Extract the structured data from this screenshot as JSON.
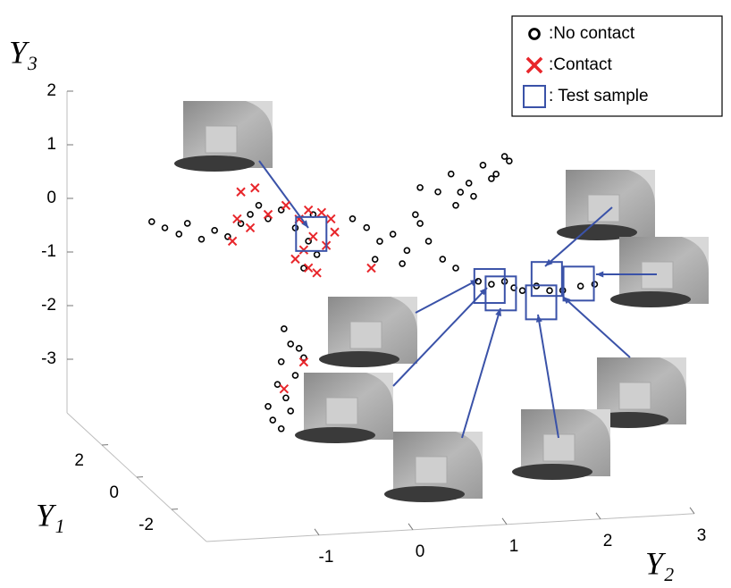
{
  "chart_data": {
    "type": "scatter3d",
    "x_label": "Y₂",
    "y_label": "Y₁",
    "z_label": "Y₃",
    "y1lim": [
      -4,
      4
    ],
    "y1ticks": [
      -2,
      0,
      2
    ],
    "y2lim": [
      -2.2,
      3
    ],
    "y2ticks": [
      -1,
      0,
      1,
      2,
      3
    ],
    "y3lim": [
      -4,
      2
    ],
    "y3ticks": [
      -3,
      -2,
      -1,
      0,
      1,
      2
    ],
    "legend": "top-right",
    "series": [
      {
        "name": ":No contact",
        "color": "#000000",
        "marker": "circle",
        "y1": [
          0,
          0,
          0,
          0,
          0,
          0,
          0,
          0,
          0,
          0,
          0,
          0,
          0,
          0,
          0,
          0,
          0,
          0,
          0,
          0,
          0,
          0,
          0,
          0,
          0,
          0,
          0,
          0,
          0,
          0,
          0,
          0,
          0,
          0,
          0,
          0,
          0,
          0,
          0,
          0,
          0,
          0,
          0,
          0,
          0,
          0,
          0,
          0,
          0,
          0,
          0,
          0,
          0,
          0,
          0,
          0,
          0,
          0,
          0,
          0,
          0,
          0,
          0
        ],
        "y2": [
          -2.04,
          -1.9,
          -1.75,
          -1.66,
          -1.51,
          -1.37,
          -1.23,
          -1.09,
          -0.99,
          -0.9,
          -0.8,
          -0.66,
          -0.51,
          -0.37,
          -0.28,
          -0.42,
          -0.32,
          0.1,
          0.25,
          0.39,
          0.53,
          0.68,
          0.82,
          0.91,
          1.06,
          1.2,
          0.34,
          0.63,
          0.77,
          0.82,
          1.01,
          1.15,
          1.25,
          1.34,
          1.49,
          1.63,
          1.72,
          1.77,
          1.2,
          1.39,
          1.58,
          1.44,
          1.58,
          1.72,
          1.82,
          1.91,
          2.06,
          2.2,
          2.34,
          2.53,
          2.68,
          -0.63,
          -0.56,
          -0.47,
          -0.66,
          -0.51,
          -0.7,
          -0.61,
          -0.8,
          -0.75,
          -0.66,
          -0.42,
          -0.56
        ],
        "y3": [
          0.75,
          0.62,
          0.49,
          0.68,
          0.37,
          0.52,
          0.39,
          0.62,
          0.78,
          0.94,
          0.68,
          0.83,
          0.48,
          0.22,
          -0.04,
          -0.28,
          0.71,
          0.59,
          0.41,
          0.14,
          0.26,
          -0.06,
          0.43,
          0.09,
          -0.26,
          -0.44,
          -0.19,
          -0.3,
          0.6,
          1.1,
          1.0,
          1.32,
          0.97,
          1.13,
          1.45,
          1.27,
          1.59,
          1.5,
          0.73,
          0.88,
          1.19,
          -0.71,
          -0.78,
          -0.74,
          -0.87,
          -0.93,
          -0.86,
          -0.96,
          -0.97,
          -0.91,
          -0.89,
          -1.39,
          -1.68,
          -1.77,
          -2.0,
          -2.27,
          -2.42,
          -2.68,
          -2.82,
          -3.08,
          -3.25,
          -1.95,
          -2.93
        ]
      },
      {
        "name": ":Contact",
        "color": "#e8262b",
        "marker": "x",
        "y1": [
          0,
          0,
          0,
          0,
          0,
          0,
          0,
          0,
          0,
          0,
          0,
          0,
          0,
          0,
          0,
          0,
          0,
          0,
          0,
          0,
          0
        ],
        "y2": [
          -1.09,
          -0.94,
          -1.13,
          -0.99,
          -0.8,
          -0.61,
          -0.47,
          -0.37,
          -0.23,
          -0.13,
          -0.09,
          -0.51,
          -0.37,
          -0.28,
          -0.42,
          -0.18,
          -0.32,
          0.3,
          -1.18,
          -0.42,
          -0.63
        ],
        "y3": [
          1.21,
          1.27,
          0.71,
          0.53,
          0.76,
          0.91,
          0.64,
          0.8,
          0.74,
          0.61,
          0.36,
          -0.1,
          -0.28,
          -0.38,
          0.06,
          0.12,
          0.3,
          -0.35,
          0.3,
          -2.03,
          -2.51
        ]
      },
      {
        "name": ": Test sample",
        "color": "#3a52a8",
        "marker": "square",
        "y1": [
          0,
          0,
          0,
          0,
          0,
          0
        ],
        "y2": [
          -0.34,
          1.56,
          1.68,
          2.17,
          2.11,
          2.51
        ],
        "y3": [
          0.35,
          -0.81,
          -0.96,
          -0.74,
          -1.17,
          -0.86
        ]
      }
    ]
  }
}
